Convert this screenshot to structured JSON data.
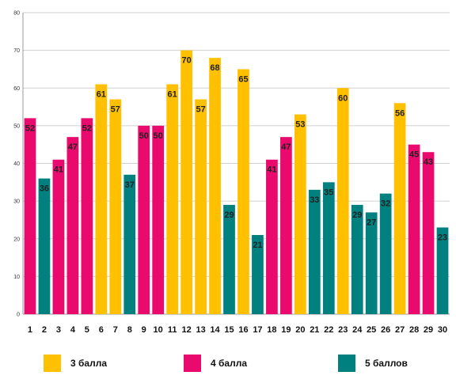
{
  "chart_data": {
    "type": "bar",
    "categories": [
      "1",
      "2",
      "3",
      "4",
      "5",
      "6",
      "7",
      "8",
      "9",
      "10",
      "11",
      "12",
      "13",
      "14",
      "15",
      "16",
      "17",
      "18",
      "19",
      "20",
      "21",
      "22",
      "23",
      "24",
      "25",
      "26",
      "27",
      "28",
      "29",
      "30"
    ],
    "values": [
      52,
      36,
      41,
      47,
      52,
      61,
      57,
      37,
      50,
      50,
      61,
      70,
      57,
      68,
      29,
      65,
      21,
      41,
      47,
      53,
      33,
      35,
      60,
      29,
      27,
      32,
      56,
      45,
      43,
      23
    ],
    "groups": [
      "4 балла",
      "5 баллов",
      "4 балла",
      "4 балла",
      "4 балла",
      "3 балла",
      "3 балла",
      "5 баллов",
      "4 балла",
      "4 балла",
      "3 балла",
      "3 балла",
      "3 балла",
      "3 балла",
      "5 баллов",
      "3 балла",
      "5 баллов",
      "4 балла",
      "4 балла",
      "3 балла",
      "5 баллов",
      "5 баллов",
      "3 балла",
      "5 баллов",
      "5 баллов",
      "5 баллов",
      "3 балла",
      "4 балла",
      "4 балла",
      "5 баллов"
    ],
    "ylim": [
      0,
      80
    ],
    "yticks": [
      0,
      10,
      20,
      30,
      40,
      50,
      60,
      70,
      80
    ],
    "grid": true,
    "legend_position": "bottom",
    "legend": [
      {
        "name": "3 балла",
        "color": "#FFC000"
      },
      {
        "name": "4 балла",
        "color": "#EA0A6E"
      },
      {
        "name": "5 баллов",
        "color": "#00807F"
      }
    ]
  }
}
